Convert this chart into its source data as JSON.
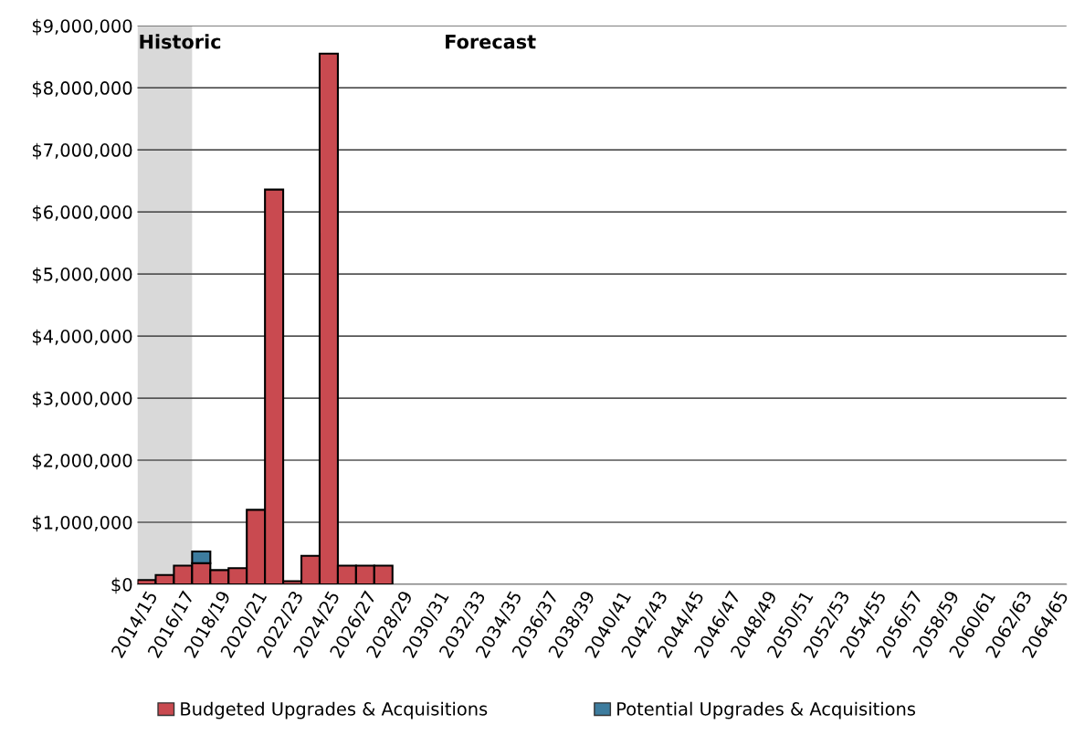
{
  "chart_data": {
    "type": "bar",
    "stacked": true,
    "categories": [
      "2014/15",
      null,
      "2016/17",
      null,
      "2018/19",
      null,
      "2020/21",
      null,
      "2022/23",
      null,
      "2024/25",
      null,
      "2026/27",
      null,
      "2028/29",
      null,
      "2030/31",
      null,
      "2032/33",
      null,
      "2034/35",
      null,
      "2036/37",
      null,
      "2038/39",
      null,
      "2040/41",
      null,
      "2042/43",
      null,
      "2044/45",
      null,
      "2046/47",
      null,
      "2048/49",
      null,
      "2050/51",
      null,
      "2052/53",
      null,
      "2054/55",
      null,
      "2056/57",
      null,
      "2058/59",
      null,
      "2060/61",
      null,
      "2062/63",
      null,
      "2064/65"
    ],
    "series": [
      {
        "name": "Budgeted Upgrades & Acquisitions",
        "color": "#c94a50",
        "values": [
          70000,
          150000,
          300000,
          340000,
          230000,
          260000,
          1200000,
          6360000,
          50000,
          460000,
          8550000,
          300000,
          300000,
          300000,
          null,
          null,
          null,
          null,
          null,
          null,
          null,
          null,
          null,
          null,
          null,
          null,
          null,
          null,
          null,
          null,
          null,
          null,
          null,
          null,
          null,
          null,
          null,
          null,
          null,
          null,
          null,
          null,
          null,
          null,
          null,
          null,
          null,
          null,
          null,
          null,
          null
        ]
      },
      {
        "name": "Potential Upgrades & Acquisitions",
        "color": "#3d7c9e",
        "values": [
          null,
          null,
          null,
          190000,
          null,
          null,
          null,
          null,
          null,
          null,
          null,
          null,
          null,
          null,
          null,
          null,
          null,
          null,
          null,
          null,
          null,
          null,
          null,
          null,
          null,
          null,
          null,
          null,
          null,
          null,
          null,
          null,
          null,
          null,
          null,
          null,
          null,
          null,
          null,
          null,
          null,
          null,
          null,
          null,
          null,
          null,
          null,
          null,
          null,
          null,
          null
        ]
      }
    ],
    "ylim": [
      0,
      9000000
    ],
    "yticks": [
      {
        "value": 0,
        "label": "$0"
      },
      {
        "value": 1000000,
        "label": "$1,000,000"
      },
      {
        "value": 2000000,
        "label": "$2,000,000"
      },
      {
        "value": 3000000,
        "label": "$3,000,000"
      },
      {
        "value": 4000000,
        "label": "$4,000,000"
      },
      {
        "value": 5000000,
        "label": "$5,000,000"
      },
      {
        "value": 6000000,
        "label": "$6,000,000"
      },
      {
        "value": 7000000,
        "label": "$7,000,000"
      },
      {
        "value": 8000000,
        "label": "$8,000,000"
      },
      {
        "value": 9000000,
        "label": "$9,000,000"
      }
    ],
    "bands": [
      {
        "axis": "x",
        "from": "2014/15",
        "to": "2016/17",
        "label": "Historic",
        "color": "#d9d9d9"
      }
    ],
    "annotations": [
      "Forecast"
    ],
    "grid": "y",
    "legend": "bottom"
  }
}
